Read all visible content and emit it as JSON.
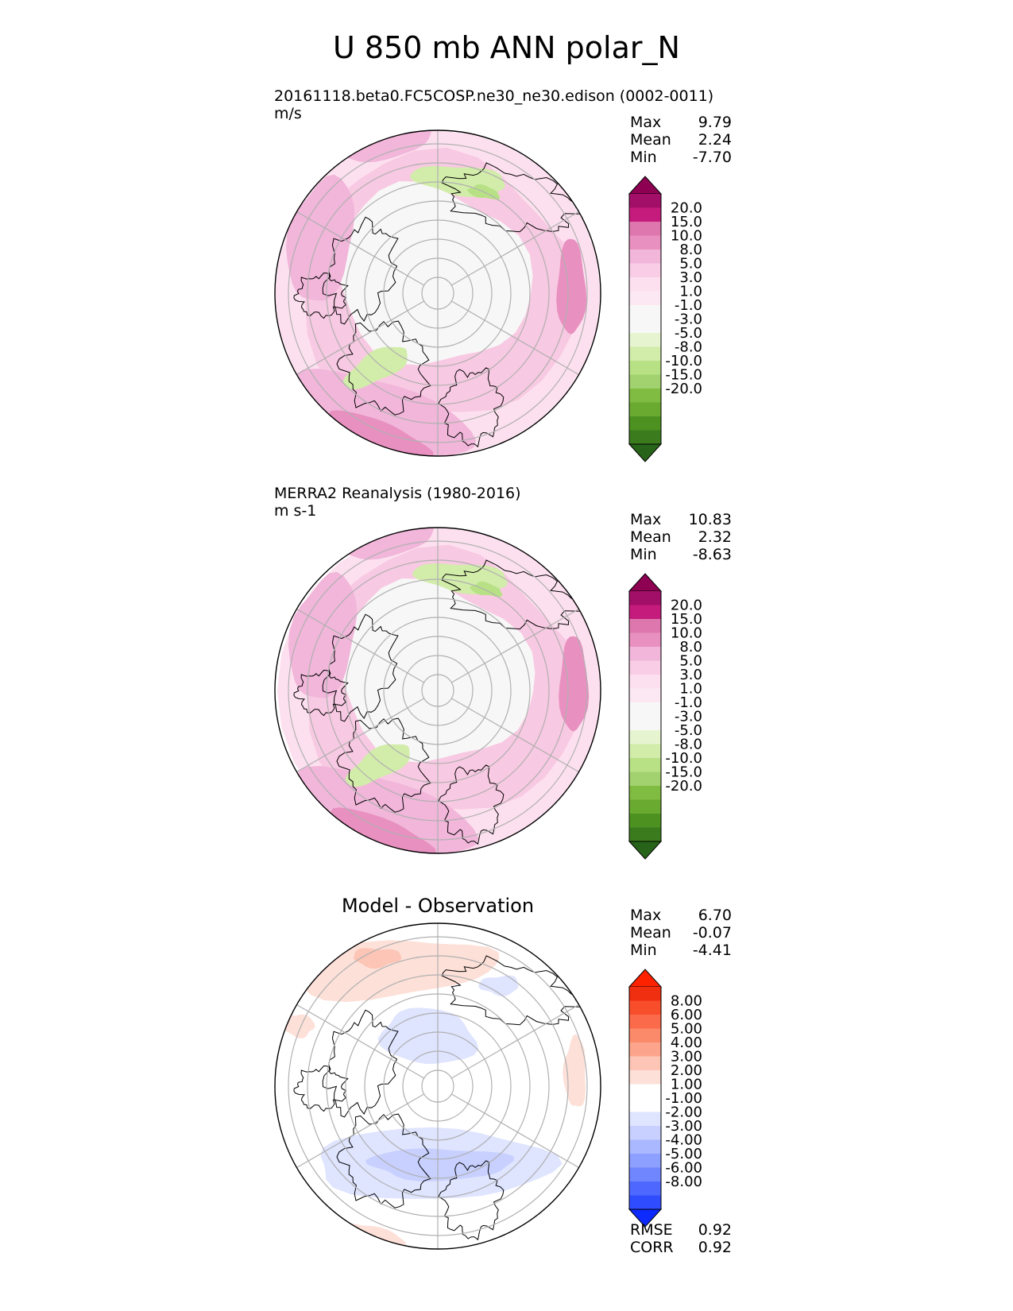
{
  "title": "U 850 mb ANN polar_N",
  "colors": {
    "seq_levels": [
      "#276419",
      "#4d9221",
      "#7fbc41",
      "#b8e186",
      "#d2ecaa",
      "#e6f5d0",
      "#f7f7f7",
      "#fde0ef",
      "#f8c9e2",
      "#f1b6da",
      "#e890c0",
      "#de77ae",
      "#c51b7d",
      "#8e0152"
    ],
    "seq_bins": [
      "#276419",
      "#3b7b1d",
      "#4d9221",
      "#6aaa31",
      "#7fbc41",
      "#a2d16f",
      "#b8e186",
      "#d2ecaa",
      "#e6f5d0",
      "#f7f7f7",
      "#f7f7f7",
      "#fbe8f2",
      "#fde0ef",
      "#f8cde5",
      "#f1b6da",
      "#e890c0",
      "#de77ae",
      "#c51b7d",
      "#a20f69",
      "#8e0152"
    ],
    "diff_bins": [
      "#0d2aff",
      "#2f4cff",
      "#4e68ff",
      "#6f86ff",
      "#8d9fff",
      "#aab8ff",
      "#c7d0ff",
      "#dfe4ff",
      "#ffffff",
      "#ffffff",
      "#fde0d8",
      "#fcc5b6",
      "#fca58c",
      "#fb8a6b",
      "#fb6a4a",
      "#f84e2c",
      "#f02e10",
      "#ff2200"
    ],
    "coast": "#000000",
    "grid": "#b0b0b0"
  },
  "panels": [
    {
      "caption": "20161118.beta0.FC5COSP.ne30_ne30.edison (0002-0011)",
      "units": "m/s",
      "stats": [
        {
          "label": "Max",
          "value": "9.79"
        },
        {
          "label": "Mean",
          "value": "2.24"
        },
        {
          "label": "Min",
          "value": "-7.70"
        }
      ],
      "colorbar_labels": [
        "20.0",
        "15.0",
        "10.0",
        "8.0",
        "5.0",
        "3.0",
        "1.0",
        "-1.0",
        "-3.0",
        "-5.0",
        "-8.0",
        "-10.0",
        "-15.0",
        "-20.0"
      ]
    },
    {
      "caption": "MERRA2 Reanalysis (1980-2016)",
      "units": "m s-1",
      "stats": [
        {
          "label": "Max",
          "value": "10.83"
        },
        {
          "label": "Mean",
          "value": "2.32"
        },
        {
          "label": "Min",
          "value": "-8.63"
        }
      ],
      "colorbar_labels": [
        "20.0",
        "15.0",
        "10.0",
        "8.0",
        "5.0",
        "3.0",
        "1.0",
        "-1.0",
        "-3.0",
        "-5.0",
        "-8.0",
        "-10.0",
        "-15.0",
        "-20.0"
      ]
    },
    {
      "caption": "Model - Observation",
      "stats": [
        {
          "label": "Max",
          "value": "6.70"
        },
        {
          "label": "Mean",
          "value": "-0.07"
        },
        {
          "label": "Min",
          "value": "-4.41"
        }
      ],
      "colorbar_labels": [
        "8.00",
        "6.00",
        "5.00",
        "4.00",
        "3.00",
        "2.00",
        "1.00",
        "-1.00",
        "-2.00",
        "-3.00",
        "-4.00",
        "-5.00",
        "-6.00",
        "-8.00"
      ],
      "metrics": [
        {
          "label": "RMSE",
          "value": "0.92"
        },
        {
          "label": "CORR",
          "value": "0.92"
        }
      ]
    }
  ]
}
